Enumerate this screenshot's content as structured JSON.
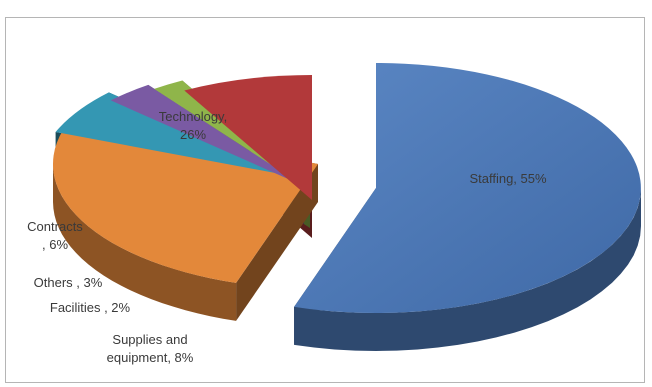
{
  "chart_data": {
    "type": "pie",
    "style": "3d-exploded",
    "categories": [
      "Staffing",
      "Technology",
      "Contracts",
      "Others",
      "Facilities",
      "Supplies and equipment"
    ],
    "values": [
      55,
      26,
      6,
      3,
      2,
      8
    ],
    "unit": "%",
    "data_labels": [
      [
        "Staffing, 55%"
      ],
      [
        "Technology,",
        "26%"
      ],
      [
        "Contracts",
        ", 6%"
      ],
      [
        "Others , 3%"
      ],
      [
        "Facilities , 2%"
      ],
      [
        "Supplies and",
        "equipment, 8%"
      ]
    ],
    "colors": {
      "Staffing": "#4a76b3",
      "Technology": "#e3883a",
      "Contracts": "#3497b3",
      "Others": "#7a5aa3",
      "Facilities": "#8fb54a",
      "Supplies and equipment": "#b2393a"
    },
    "legend": "none"
  }
}
